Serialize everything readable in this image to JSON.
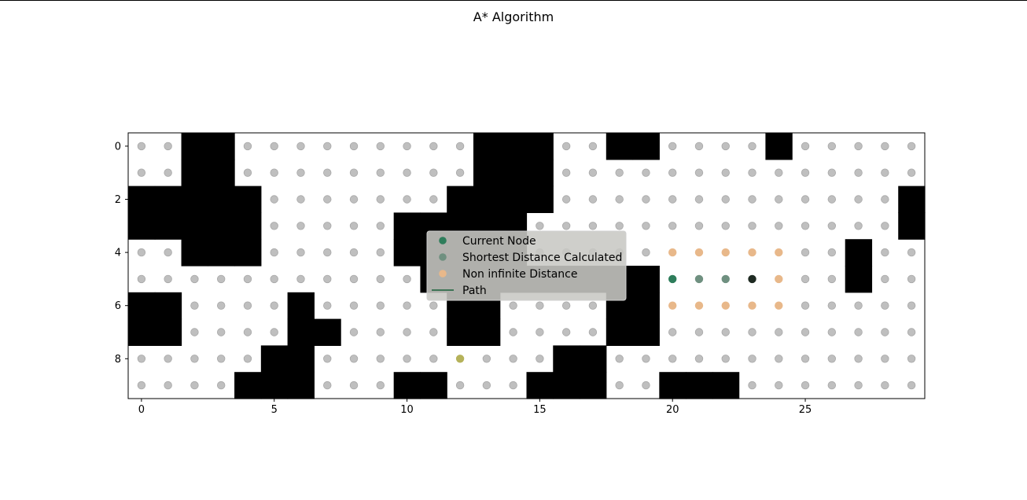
{
  "chart_data": {
    "type": "scatter",
    "title": "A* Algorithm",
    "grid_size": {
      "cols": 30,
      "rows": 10
    },
    "xlim": [
      -0.5,
      29.5
    ],
    "ylim": [
      9.5,
      -0.5
    ],
    "xticks": [
      0,
      5,
      10,
      15,
      20,
      25
    ],
    "yticks": [
      0,
      2,
      4,
      6,
      8
    ],
    "y_inverted": true,
    "grid": false,
    "legend_position": "center",
    "colors": {
      "wall": "#000000",
      "unvisited": "#bfbfbf",
      "current": "#2e7d5b",
      "shortest": "#6f9080",
      "non_infinite": "#e8b88a",
      "path": "#2e6b4a",
      "goal": "#b5b25a",
      "start": "#1e2a22"
    },
    "walls": [
      [
        0,
        2
      ],
      [
        0,
        3
      ],
      [
        0,
        13
      ],
      [
        0,
        14
      ],
      [
        0,
        15
      ],
      [
        0,
        18
      ],
      [
        0,
        19
      ],
      [
        0,
        24
      ],
      [
        1,
        2
      ],
      [
        1,
        3
      ],
      [
        1,
        13
      ],
      [
        1,
        14
      ],
      [
        1,
        15
      ],
      [
        2,
        0
      ],
      [
        2,
        1
      ],
      [
        2,
        2
      ],
      [
        2,
        3
      ],
      [
        2,
        4
      ],
      [
        2,
        12
      ],
      [
        2,
        13
      ],
      [
        2,
        14
      ],
      [
        2,
        15
      ],
      [
        2,
        29
      ],
      [
        3,
        0
      ],
      [
        3,
        1
      ],
      [
        3,
        2
      ],
      [
        3,
        3
      ],
      [
        3,
        4
      ],
      [
        3,
        10
      ],
      [
        3,
        11
      ],
      [
        3,
        12
      ],
      [
        3,
        13
      ],
      [
        3,
        14
      ],
      [
        3,
        29
      ],
      [
        4,
        2
      ],
      [
        4,
        3
      ],
      [
        4,
        4
      ],
      [
        4,
        10
      ],
      [
        4,
        11
      ],
      [
        4,
        12
      ],
      [
        4,
        13
      ],
      [
        4,
        14
      ],
      [
        4,
        27
      ],
      [
        5,
        11
      ],
      [
        5,
        12
      ],
      [
        5,
        13
      ],
      [
        5,
        14
      ],
      [
        5,
        15
      ],
      [
        5,
        16
      ],
      [
        5,
        17
      ],
      [
        5,
        18
      ],
      [
        5,
        19
      ],
      [
        5,
        27
      ],
      [
        6,
        0
      ],
      [
        6,
        1
      ],
      [
        6,
        6
      ],
      [
        6,
        12
      ],
      [
        6,
        13
      ],
      [
        6,
        18
      ],
      [
        6,
        19
      ],
      [
        7,
        0
      ],
      [
        7,
        1
      ],
      [
        7,
        6
      ],
      [
        7,
        7
      ],
      [
        7,
        12
      ],
      [
        7,
        13
      ],
      [
        7,
        18
      ],
      [
        7,
        19
      ],
      [
        8,
        5
      ],
      [
        8,
        6
      ],
      [
        8,
        16
      ],
      [
        8,
        17
      ],
      [
        9,
        4
      ],
      [
        9,
        5
      ],
      [
        9,
        6
      ],
      [
        9,
        10
      ],
      [
        9,
        11
      ],
      [
        9,
        15
      ],
      [
        9,
        16
      ],
      [
        9,
        17
      ],
      [
        9,
        20
      ],
      [
        9,
        21
      ],
      [
        9,
        22
      ]
    ],
    "non_infinite": [
      [
        4,
        20
      ],
      [
        4,
        21
      ],
      [
        4,
        22
      ],
      [
        4,
        23
      ],
      [
        4,
        24
      ],
      [
        5,
        24
      ],
      [
        6,
        20
      ],
      [
        6,
        21
      ],
      [
        6,
        22
      ],
      [
        6,
        23
      ],
      [
        6,
        24
      ]
    ],
    "shortest": [
      [
        5,
        21
      ],
      [
        5,
        22
      ]
    ],
    "current": [
      [
        5,
        20
      ]
    ],
    "start": [
      [
        5,
        23
      ]
    ],
    "goal": [
      [
        8,
        12
      ]
    ],
    "path": [],
    "legend": [
      {
        "label": "Current Node",
        "kind": "marker",
        "color": "#2e7d5b"
      },
      {
        "label": "Shortest Distance Calculated",
        "kind": "marker",
        "color": "#6f9080"
      },
      {
        "label": "Non infinite Distance",
        "kind": "marker",
        "color": "#e8b88a"
      },
      {
        "label": "Path",
        "kind": "line",
        "color": "#2e6b4a"
      }
    ]
  }
}
